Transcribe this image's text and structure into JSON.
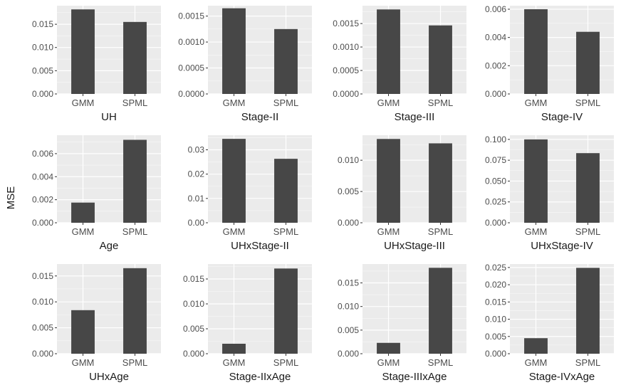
{
  "figure": {
    "ylabel": "MSE",
    "background": "#EBEBEB",
    "bar_color": "#474747",
    "grid_color": "#FFFFFF"
  },
  "chart_data": [
    {
      "type": "bar",
      "categories": [
        "GMM",
        "SPML"
      ],
      "values": [
        0.0182,
        0.0155
      ],
      "title": "UH",
      "xlabel": "UH",
      "ylabel": "MSE",
      "ylim": [
        0,
        0.019
      ],
      "yticks": [
        0,
        0.005,
        0.01,
        0.015
      ],
      "ytick_labels": [
        "0.000",
        "0.005",
        "0.010",
        "0.015"
      ],
      "grid": true
    },
    {
      "type": "bar",
      "categories": [
        "GMM",
        "SPML"
      ],
      "values": [
        0.00165,
        0.00125
      ],
      "title": "Stage-II",
      "xlabel": "Stage-II",
      "ylabel": "MSE",
      "ylim": [
        0,
        0.0017
      ],
      "yticks": [
        0,
        0.0005,
        0.001,
        0.0015
      ],
      "ytick_labels": [
        "0.0000",
        "0.0005",
        "0.0010",
        "0.0015"
      ],
      "grid": true
    },
    {
      "type": "bar",
      "categories": [
        "GMM",
        "SPML"
      ],
      "values": [
        0.0018,
        0.00146
      ],
      "title": "Stage-III",
      "xlabel": "Stage-III",
      "ylabel": "MSE",
      "ylim": [
        0,
        0.00188
      ],
      "yticks": [
        0,
        0.0005,
        0.001,
        0.0015
      ],
      "ytick_labels": [
        "0.0000",
        "0.0005",
        "0.0010",
        "0.0015"
      ],
      "grid": true
    },
    {
      "type": "bar",
      "categories": [
        "GMM",
        "SPML"
      ],
      "values": [
        0.006,
        0.0044
      ],
      "title": "Stage-IV",
      "xlabel": "Stage-IV",
      "ylabel": "MSE",
      "ylim": [
        0,
        0.00625
      ],
      "yticks": [
        0,
        0.002,
        0.004,
        0.006
      ],
      "ytick_labels": [
        "0.000",
        "0.002",
        "0.004",
        "0.006"
      ],
      "grid": true
    },
    {
      "type": "bar",
      "categories": [
        "GMM",
        "SPML"
      ],
      "values": [
        0.00175,
        0.0072
      ],
      "title": "Age",
      "xlabel": "Age",
      "ylabel": "MSE",
      "ylim": [
        0,
        0.0076
      ],
      "yticks": [
        0,
        0.002,
        0.004,
        0.006
      ],
      "ytick_labels": [
        "0.000",
        "0.002",
        "0.004",
        "0.006"
      ],
      "grid": true
    },
    {
      "type": "bar",
      "categories": [
        "GMM",
        "SPML"
      ],
      "values": [
        0.0345,
        0.0263
      ],
      "title": "UHxStage-II",
      "xlabel": "UHxStage-II",
      "ylabel": "MSE",
      "ylim": [
        0,
        0.036
      ],
      "yticks": [
        0,
        0.01,
        0.02,
        0.03
      ],
      "ytick_labels": [
        "0.00",
        "0.01",
        "0.02",
        "0.03"
      ],
      "grid": true
    },
    {
      "type": "bar",
      "categories": [
        "GMM",
        "SPML"
      ],
      "values": [
        0.0134,
        0.0127
      ],
      "title": "UHxStage-III",
      "xlabel": "UHxStage-III",
      "ylabel": "MSE",
      "ylim": [
        0,
        0.014
      ],
      "yticks": [
        0,
        0.005,
        0.01
      ],
      "ytick_labels": [
        "0.000",
        "0.005",
        "0.010"
      ],
      "grid": true
    },
    {
      "type": "bar",
      "categories": [
        "GMM",
        "SPML"
      ],
      "values": [
        0.1,
        0.0835
      ],
      "title": "UHxStage-IV",
      "xlabel": "UHxStage-IV",
      "ylabel": "MSE",
      "ylim": [
        0,
        0.105
      ],
      "yticks": [
        0,
        0.025,
        0.05,
        0.075,
        0.1
      ],
      "ytick_labels": [
        "0.000",
        "0.025",
        "0.050",
        "0.075",
        "0.100"
      ],
      "grid": true
    },
    {
      "type": "bar",
      "categories": [
        "GMM",
        "SPML"
      ],
      "values": [
        0.0084,
        0.0165
      ],
      "title": "UHxAge",
      "xlabel": "UHxAge",
      "ylabel": "MSE",
      "ylim": [
        0,
        0.0173
      ],
      "yticks": [
        0,
        0.005,
        0.01,
        0.015
      ],
      "ytick_labels": [
        "0.000",
        "0.005",
        "0.010",
        "0.015"
      ],
      "grid": true
    },
    {
      "type": "bar",
      "categories": [
        "GMM",
        "SPML"
      ],
      "values": [
        0.002,
        0.0171
      ],
      "title": "Stage-IIxAge",
      "xlabel": "Stage-IIxAge",
      "ylabel": "MSE",
      "ylim": [
        0,
        0.018
      ],
      "yticks": [
        0,
        0.005,
        0.01,
        0.015
      ],
      "ytick_labels": [
        "0.000",
        "0.005",
        "0.010",
        "0.015"
      ],
      "grid": true
    },
    {
      "type": "bar",
      "categories": [
        "GMM",
        "SPML"
      ],
      "values": [
        0.0023,
        0.0182
      ],
      "title": "Stage-IIIxAge",
      "xlabel": "Stage-IIIxAge",
      "ylabel": "MSE",
      "ylim": [
        0,
        0.019
      ],
      "yticks": [
        0,
        0.005,
        0.01,
        0.015
      ],
      "ytick_labels": [
        "0.000",
        "0.005",
        "0.010",
        "0.015"
      ],
      "grid": true
    },
    {
      "type": "bar",
      "categories": [
        "GMM",
        "SPML"
      ],
      "values": [
        0.0045,
        0.0249
      ],
      "title": "Stage-IVxAge",
      "xlabel": "Stage-IVxAge",
      "ylabel": "MSE",
      "ylim": [
        0,
        0.026
      ],
      "yticks": [
        0,
        0.005,
        0.01,
        0.015,
        0.02,
        0.025
      ],
      "ytick_labels": [
        "0.000",
        "0.005",
        "0.010",
        "0.015",
        "0.020",
        "0.025"
      ],
      "grid": true
    }
  ]
}
